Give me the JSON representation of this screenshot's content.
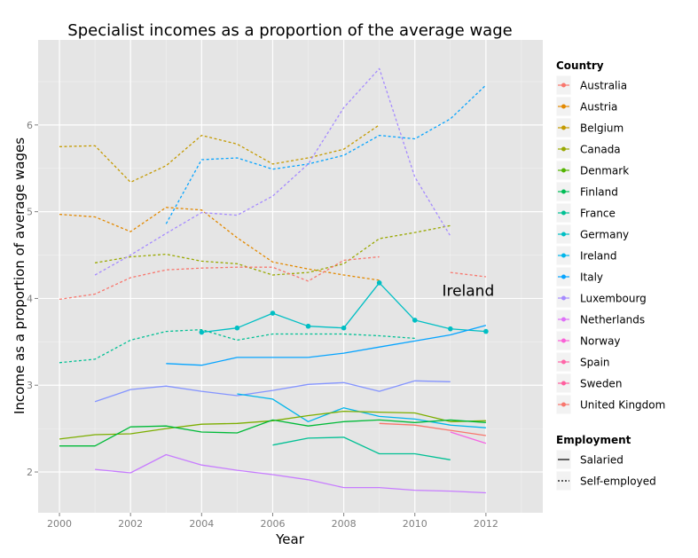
{
  "chart_data": {
    "type": "line",
    "title": "Specialist incomes as a proportion of the average wage",
    "xlabel": "Year",
    "ylabel": "Income as a proportion of average wages",
    "xlim": [
      1999.4,
      2013.6
    ],
    "ylim": [
      1.53,
      6.98
    ],
    "xticks": [
      2000,
      2002,
      2004,
      2006,
      2008,
      2010,
      2012
    ],
    "yticks": [
      2,
      3,
      4,
      5,
      6
    ],
    "grid": true,
    "annotation": {
      "text": "Ireland",
      "x": 2011.5,
      "y": 4.0
    },
    "legend": {
      "position": "right",
      "country_title": "Country",
      "employment_title": "Employment",
      "employment_items": [
        {
          "label": "Salaried",
          "dash": "solid"
        },
        {
          "label": "Self-employed",
          "dash": "dotted"
        }
      ]
    },
    "countries": [
      {
        "name": "Australia",
        "color": "#F8766D"
      },
      {
        "name": "Austria",
        "color": "#E38900"
      },
      {
        "name": "Belgium",
        "color": "#C49A00"
      },
      {
        "name": "Canada",
        "color": "#99A800"
      },
      {
        "name": "Denmark",
        "color": "#53B400"
      },
      {
        "name": "Finland",
        "color": "#00BC56"
      },
      {
        "name": "France",
        "color": "#00C094"
      },
      {
        "name": "Germany",
        "color": "#00BFC4"
      },
      {
        "name": "Ireland",
        "color": "#00B6EB"
      },
      {
        "name": "Italy",
        "color": "#06A4FF"
      },
      {
        "name": "Luxembourg",
        "color": "#A58AFF"
      },
      {
        "name": "Netherlands",
        "color": "#DF70F8"
      },
      {
        "name": "Norway",
        "color": "#FB61D7"
      },
      {
        "name": "Spain",
        "color": "#FF66A8"
      },
      {
        "name": "Sweden",
        "color": "#FF5E9E"
      },
      {
        "name": "United Kingdom",
        "color": "#F8766D"
      }
    ],
    "series": [
      {
        "name": "Austria",
        "employment": "Self-employed",
        "color": "#E38900",
        "x": [
          2000,
          2001,
          2002,
          2003,
          2004,
          2005,
          2006,
          2007,
          2008,
          2009
        ],
        "y": [
          4.97,
          4.94,
          4.77,
          5.05,
          5.02,
          4.7,
          4.42,
          4.34,
          4.27,
          4.21
        ]
      },
      {
        "name": "Belgium",
        "employment": "Self-employed",
        "color": "#C49A00",
        "x": [
          2000,
          2001,
          2002,
          2003,
          2004,
          2005,
          2006,
          2007,
          2008,
          2009
        ],
        "y": [
          5.75,
          5.76,
          5.34,
          5.53,
          5.88,
          5.78,
          5.55,
          5.62,
          5.72,
          6.0
        ]
      },
      {
        "name": "Canada",
        "employment": "Self-employed",
        "color": "#99A800",
        "x": [
          2001,
          2002,
          2003,
          2004,
          2005,
          2006,
          2007,
          2008,
          2009,
          2010,
          2011
        ],
        "y": [
          4.41,
          4.48,
          4.51,
          4.43,
          4.4,
          4.27,
          4.3,
          4.4,
          4.69,
          4.76,
          4.84
        ]
      },
      {
        "name": "Australia",
        "employment": "Self-employed",
        "color": "#F8766D",
        "x": [
          2000,
          2001,
          2002,
          2003,
          2004,
          2005,
          2006,
          2007,
          2008,
          2009
        ],
        "y": [
          3.99,
          4.05,
          4.24,
          4.33,
          4.35,
          4.36,
          4.36,
          4.2,
          4.44,
          4.48
        ]
      },
      {
        "name": "Australia",
        "employment": "Self-employed",
        "color": "#F8766D",
        "x": [
          2011,
          2012
        ],
        "y": [
          4.3,
          4.25
        ]
      },
      {
        "name": "Italy",
        "employment": "Self-employed",
        "color": "#06A4FF",
        "x": [
          2003,
          2004,
          2005,
          2006,
          2007,
          2008,
          2009,
          2010,
          2011,
          2012
        ],
        "y": [
          4.86,
          5.6,
          5.62,
          5.49,
          5.55,
          5.65,
          5.88,
          5.84,
          6.07,
          6.46
        ]
      },
      {
        "name": "Netherlands",
        "employment": "Self-employed",
        "color": "#A58AFF",
        "x": [
          2001,
          2002,
          2003,
          2004,
          2005,
          2006,
          2007,
          2008,
          2009,
          2010,
          2011
        ],
        "y": [
          4.27,
          4.5,
          4.75,
          4.99,
          4.96,
          5.18,
          5.55,
          6.2,
          6.65,
          5.4,
          4.72
        ]
      },
      {
        "name": "France",
        "employment": "Self-employed",
        "color": "#00C094",
        "x": [
          2000,
          2001,
          2002,
          2003,
          2004,
          2005,
          2006,
          2007,
          2008,
          2009,
          2010
        ],
        "y": [
          3.26,
          3.3,
          3.52,
          3.62,
          3.64,
          3.52,
          3.59,
          3.59,
          3.59,
          3.57,
          3.54
        ]
      },
      {
        "name": "Ireland",
        "employment": "Salaried",
        "color": "#00BFC4",
        "markers": true,
        "x": [
          2004,
          2005,
          2006,
          2007,
          2008,
          2009,
          2010,
          2011,
          2012
        ],
        "y": [
          3.61,
          3.66,
          3.83,
          3.68,
          3.66,
          4.18,
          3.75,
          3.65,
          3.62
        ]
      },
      {
        "name": "Luxembourg",
        "employment": "Salaried",
        "color": "#06A4FF",
        "x": [
          2003,
          2004,
          2005,
          2006,
          2007,
          2008,
          2009,
          2010,
          2011,
          2012
        ],
        "y": [
          3.25,
          3.23,
          3.32,
          3.32,
          3.32,
          3.37,
          3.44,
          3.51,
          3.58,
          3.69
        ]
      },
      {
        "name": "Netherlands",
        "employment": "Salaried",
        "color": "#8494FF",
        "x": [
          2001,
          2002,
          2003,
          2004,
          2005,
          2006,
          2007,
          2008,
          2009,
          2010,
          2011
        ],
        "y": [
          2.81,
          2.95,
          2.99,
          2.93,
          2.88,
          2.94,
          3.01,
          3.03,
          2.93,
          3.05,
          3.04
        ]
      },
      {
        "name": "Italy",
        "employment": "Salaried",
        "color": "#00B6EB",
        "x": [
          2005,
          2006,
          2007,
          2008,
          2009,
          2010,
          2011,
          2012
        ],
        "y": [
          2.9,
          2.84,
          2.58,
          2.74,
          2.64,
          2.61,
          2.54,
          2.51
        ]
      },
      {
        "name": "Denmark",
        "employment": "Salaried",
        "color": "#7CAE00",
        "x": [
          2000,
          2001,
          2002,
          2003,
          2004,
          2005,
          2006,
          2007,
          2008,
          2009,
          2010,
          2011,
          2012
        ],
        "y": [
          2.38,
          2.43,
          2.44,
          2.5,
          2.55,
          2.56,
          2.59,
          2.65,
          2.7,
          2.69,
          2.68,
          2.58,
          2.59
        ]
      },
      {
        "name": "Finland",
        "employment": "Salaried",
        "color": "#00BA38",
        "x": [
          2000,
          2001,
          2002,
          2003,
          2004,
          2005,
          2006,
          2007,
          2008,
          2009,
          2010,
          2011,
          2012
        ],
        "y": [
          2.3,
          2.3,
          2.52,
          2.53,
          2.46,
          2.45,
          2.6,
          2.53,
          2.58,
          2.6,
          2.57,
          2.6,
          2.57
        ]
      },
      {
        "name": "France",
        "employment": "Salaried",
        "color": "#00C094",
        "x": [
          2006,
          2007,
          2008,
          2009,
          2010,
          2011
        ],
        "y": [
          2.31,
          2.39,
          2.4,
          2.21,
          2.21,
          2.14
        ]
      },
      {
        "name": "United Kingdom",
        "employment": "Salaried",
        "color": "#F8766D",
        "x": [
          2009,
          2010,
          2011,
          2012
        ],
        "y": [
          2.56,
          2.54,
          2.48,
          2.42
        ]
      },
      {
        "name": "Spain",
        "employment": "Salaried",
        "color": "#F564E3",
        "x": [
          2011,
          2012
        ],
        "y": [
          2.46,
          2.33
        ]
      },
      {
        "name": "Norway",
        "employment": "Salaried",
        "color": "#C77CFF",
        "x": [
          2001,
          2002,
          2003,
          2004,
          2005,
          2006,
          2007,
          2008,
          2009,
          2010,
          2011,
          2012
        ],
        "y": [
          2.03,
          1.99,
          2.2,
          2.08,
          2.02,
          1.97,
          1.91,
          1.82,
          1.82,
          1.79,
          1.78,
          1.76
        ]
      }
    ]
  }
}
